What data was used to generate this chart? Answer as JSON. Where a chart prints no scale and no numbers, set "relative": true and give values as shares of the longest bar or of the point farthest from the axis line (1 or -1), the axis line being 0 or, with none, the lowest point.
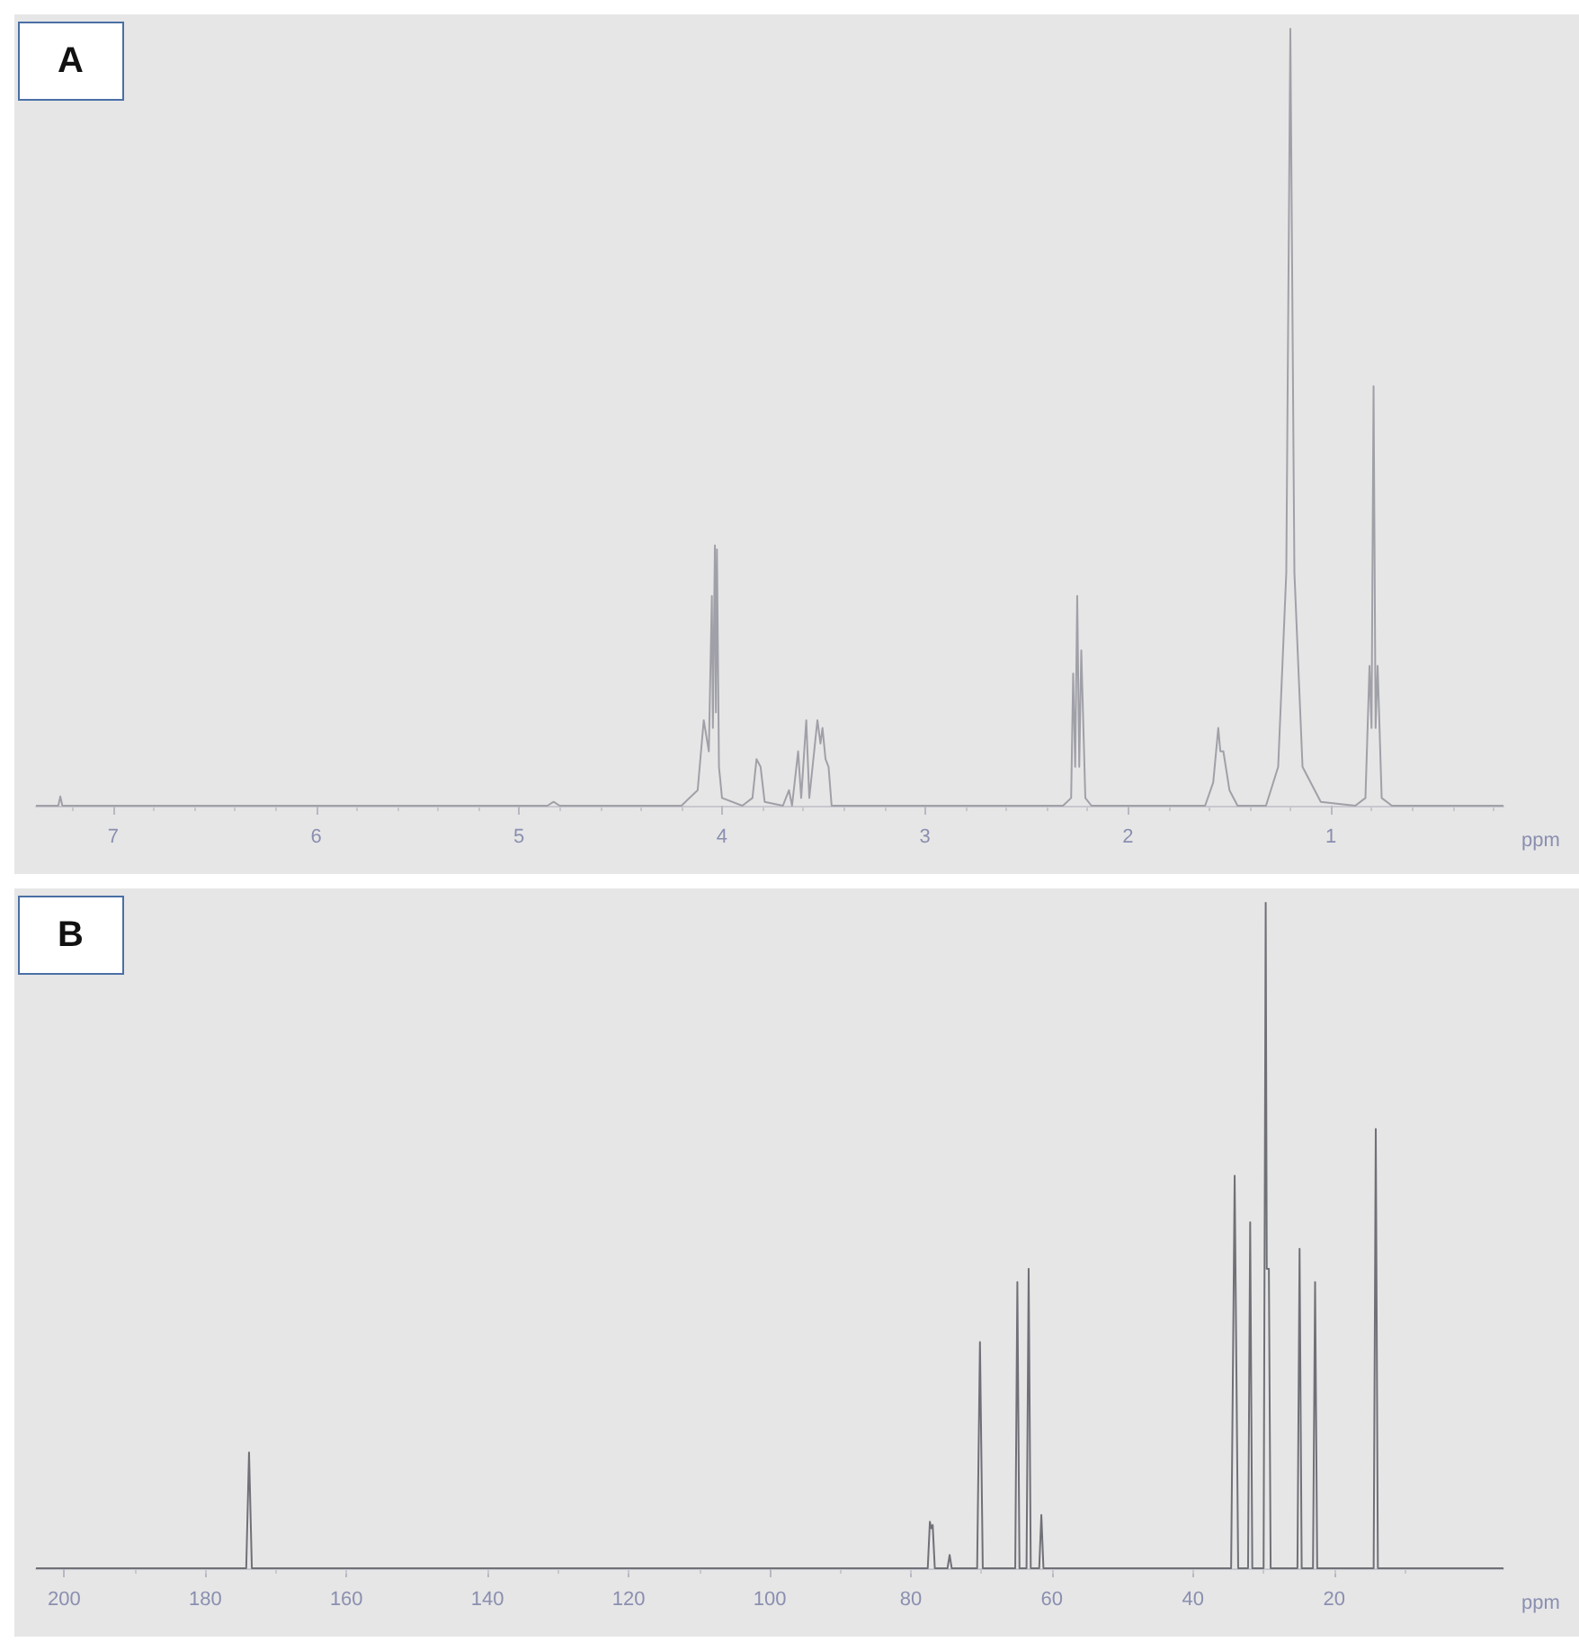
{
  "chart_data": [
    {
      "type": "line",
      "title": "A",
      "xlabel": "ppm",
      "relative": true,
      "color": "#a0a0a8",
      "xlim": [
        7.38,
        0.15
      ],
      "xticks": [
        7,
        6,
        5,
        4,
        3,
        2,
        1
      ],
      "x": [
        7.38,
        7.27,
        7.26,
        7.25,
        4.86,
        4.83,
        4.8,
        4.2,
        4.12,
        4.09,
        4.065,
        4.05,
        4.045,
        4.035,
        4.03,
        4.025,
        4.015,
        4.0,
        3.9,
        3.85,
        3.83,
        3.81,
        3.79,
        3.7,
        3.67,
        3.655,
        3.625,
        3.61,
        3.585,
        3.57,
        3.53,
        3.515,
        3.505,
        3.49,
        3.475,
        3.46,
        2.32,
        2.28,
        2.27,
        2.26,
        2.25,
        2.24,
        2.23,
        2.21,
        2.18,
        1.62,
        1.58,
        1.555,
        1.545,
        1.53,
        1.5,
        1.46,
        1.32,
        1.26,
        1.22,
        1.2,
        1.18,
        1.14,
        1.05,
        0.88,
        0.83,
        0.81,
        0.8,
        0.79,
        0.78,
        0.77,
        0.75,
        0.7,
        0.15
      ],
      "values": [
        0,
        0,
        0.012,
        0,
        0,
        0.005,
        0,
        0,
        0.02,
        0.11,
        0.07,
        0.27,
        0.1,
        0.335,
        0.12,
        0.33,
        0.05,
        0.01,
        0,
        0.01,
        0.06,
        0.05,
        0.005,
        0,
        0.02,
        0,
        0.07,
        0.01,
        0.11,
        0.01,
        0.11,
        0.08,
        0.1,
        0.06,
        0.05,
        0,
        0,
        0.01,
        0.17,
        0.05,
        0.27,
        0.05,
        0.2,
        0.01,
        0,
        0,
        0.03,
        0.1,
        0.07,
        0.07,
        0.02,
        0,
        0,
        0.05,
        0.3,
        1.0,
        0.3,
        0.05,
        0.005,
        0,
        0.01,
        0.18,
        0.1,
        0.54,
        0.1,
        0.18,
        0.01,
        0,
        0
      ]
    },
    {
      "type": "line",
      "title": "B",
      "xlabel": "ppm",
      "relative": true,
      "color": "#707078",
      "xlim": [
        204,
        -4
      ],
      "xticks": [
        200,
        180,
        160,
        140,
        120,
        100,
        80,
        60,
        40,
        20
      ],
      "x": [
        204,
        174.2,
        173.8,
        173.4,
        77.6,
        77.3,
        77.1,
        76.9,
        76.6,
        74.8,
        74.5,
        74.2,
        70.6,
        70.2,
        69.8,
        65.2,
        64.9,
        64.6,
        63.6,
        63.3,
        63.0,
        61.8,
        61.5,
        61.2,
        34.6,
        34.1,
        33.6,
        32.2,
        31.9,
        31.6,
        30.0,
        29.7,
        29.55,
        29.4,
        29.25,
        29.0,
        25.2,
        24.9,
        24.6,
        23.0,
        22.7,
        22.4,
        14.4,
        14.1,
        13.8,
        -4
      ],
      "values": [
        0,
        0,
        0.174,
        0,
        0,
        0.07,
        0.06,
        0.065,
        0,
        0,
        0.02,
        0,
        0,
        0.34,
        0,
        0,
        0.43,
        0,
        0,
        0.45,
        0,
        0,
        0.08,
        0,
        0,
        0.59,
        0,
        0,
        0.52,
        0,
        0,
        1.0,
        0.45,
        0.45,
        0.45,
        0,
        0,
        0.48,
        0,
        0,
        0.43,
        0,
        0,
        0.66,
        0,
        0
      ]
    }
  ]
}
